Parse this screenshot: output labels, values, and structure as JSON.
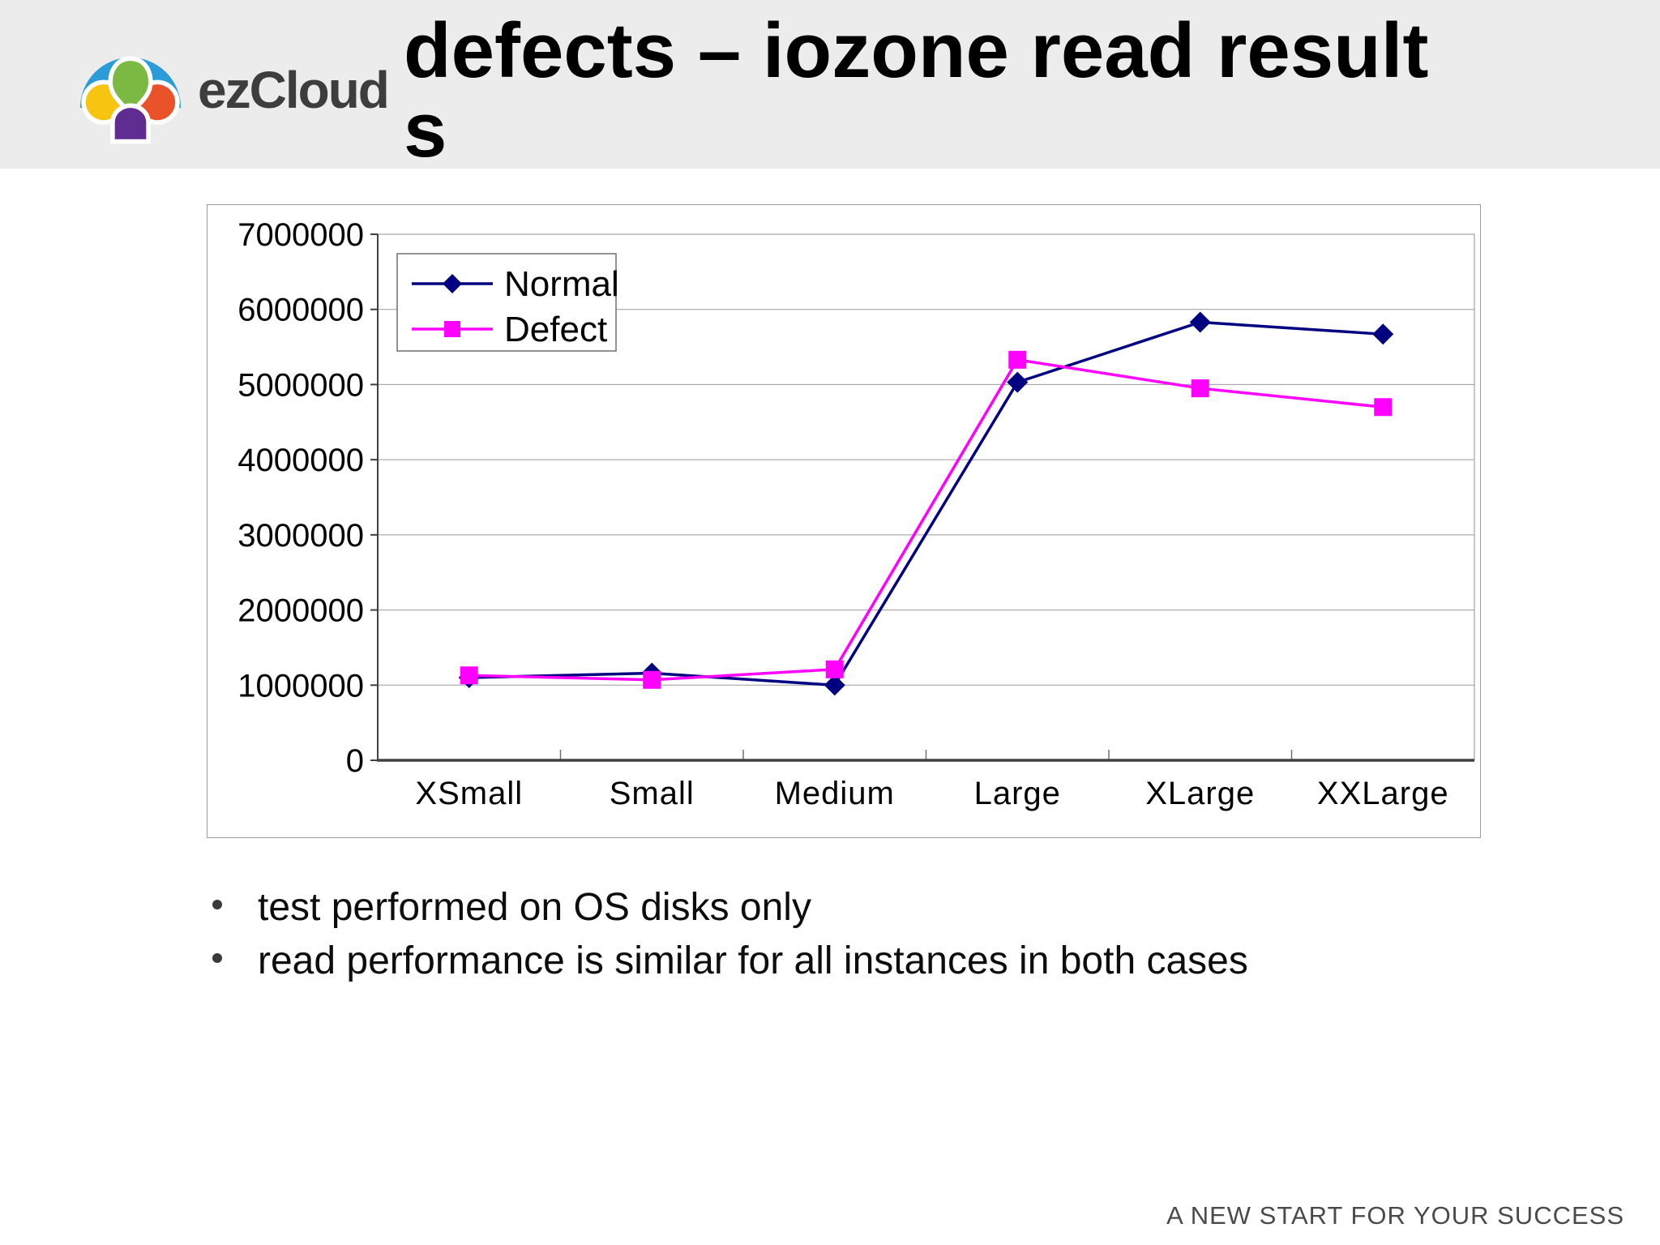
{
  "header": {
    "logo_text": "ezCloud",
    "title": "defects – iozone read results"
  },
  "colors": {
    "header_bg": "#ececec",
    "logo_blue": "#2b9cd8",
    "logo_green": "#7cb942",
    "logo_yellow": "#f6c411",
    "logo_orange": "#ea5329",
    "logo_purple": "#5f2d91",
    "logo_text_gray": "#3d3d3d",
    "normal_series": "#000080",
    "defect_series": "#ff00ff",
    "gridline": "#9c9c9c",
    "axis": "#404040",
    "footer_text": "#4a4a4a"
  },
  "chart_data": {
    "type": "line",
    "categories": [
      "XSmall",
      "Small",
      "Medium",
      "Large",
      "XLarge",
      "XXLarge"
    ],
    "series": [
      {
        "name": "Normal",
        "color": "#000080",
        "marker": "diamond",
        "values": [
          1100000,
          1160000,
          1000000,
          5030000,
          5830000,
          5670000
        ]
      },
      {
        "name": "Defect",
        "color": "#ff00ff",
        "marker": "square",
        "values": [
          1130000,
          1070000,
          1210000,
          5330000,
          4950000,
          4700000
        ]
      }
    ],
    "title": "",
    "xlabel": "",
    "ylabel": "",
    "ylim": [
      0,
      7000000
    ],
    "yticks": [
      0,
      1000000,
      2000000,
      3000000,
      4000000,
      5000000,
      6000000,
      7000000
    ],
    "grid": true,
    "legend_position": "top-left"
  },
  "bullets": [
    "test performed on OS disks only",
    "read performance is similar for all instances in both cases"
  ],
  "footer": {
    "tagline": "A NEW START FOR YOUR SUCCESS"
  }
}
